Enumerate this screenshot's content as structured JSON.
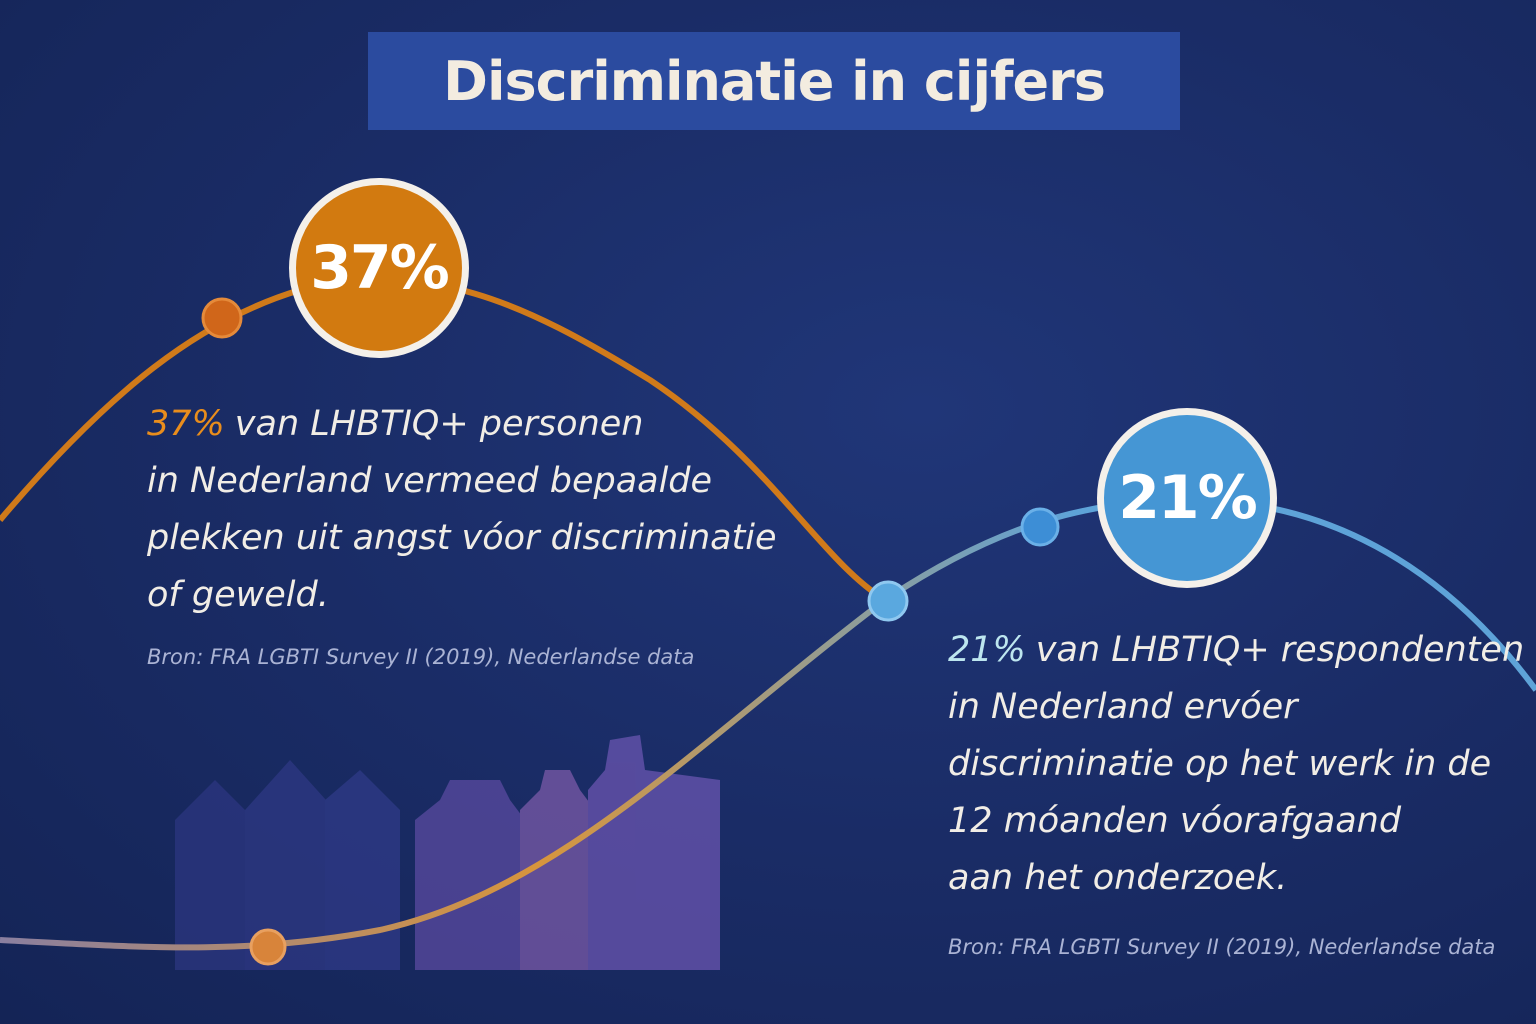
{
  "title": "Discriminatie in cijfers",
  "stats": [
    {
      "badge": "37%",
      "highlight": "37%",
      "lines": [
        "van LHBTIQ+ personen",
        "in Nederland vermeed bepaalde",
        "plekken uit angst vóor discriminatie",
        "of geweld."
      ],
      "source": "Bron: FRA LGBTI Survey II (2019), Nederlandse data"
    },
    {
      "badge": "21%",
      "highlight": "21%",
      "lines": [
        "van LHBTIQ+ respondenten",
        "in Nederland ervóer",
        "discriminatie op het werk in de",
        "12 móanden vóorafgaand",
        "aan het onderzoek."
      ],
      "source": "Bron: FRA LGBTI Survey II (2019), Nederlandse data"
    }
  ]
}
